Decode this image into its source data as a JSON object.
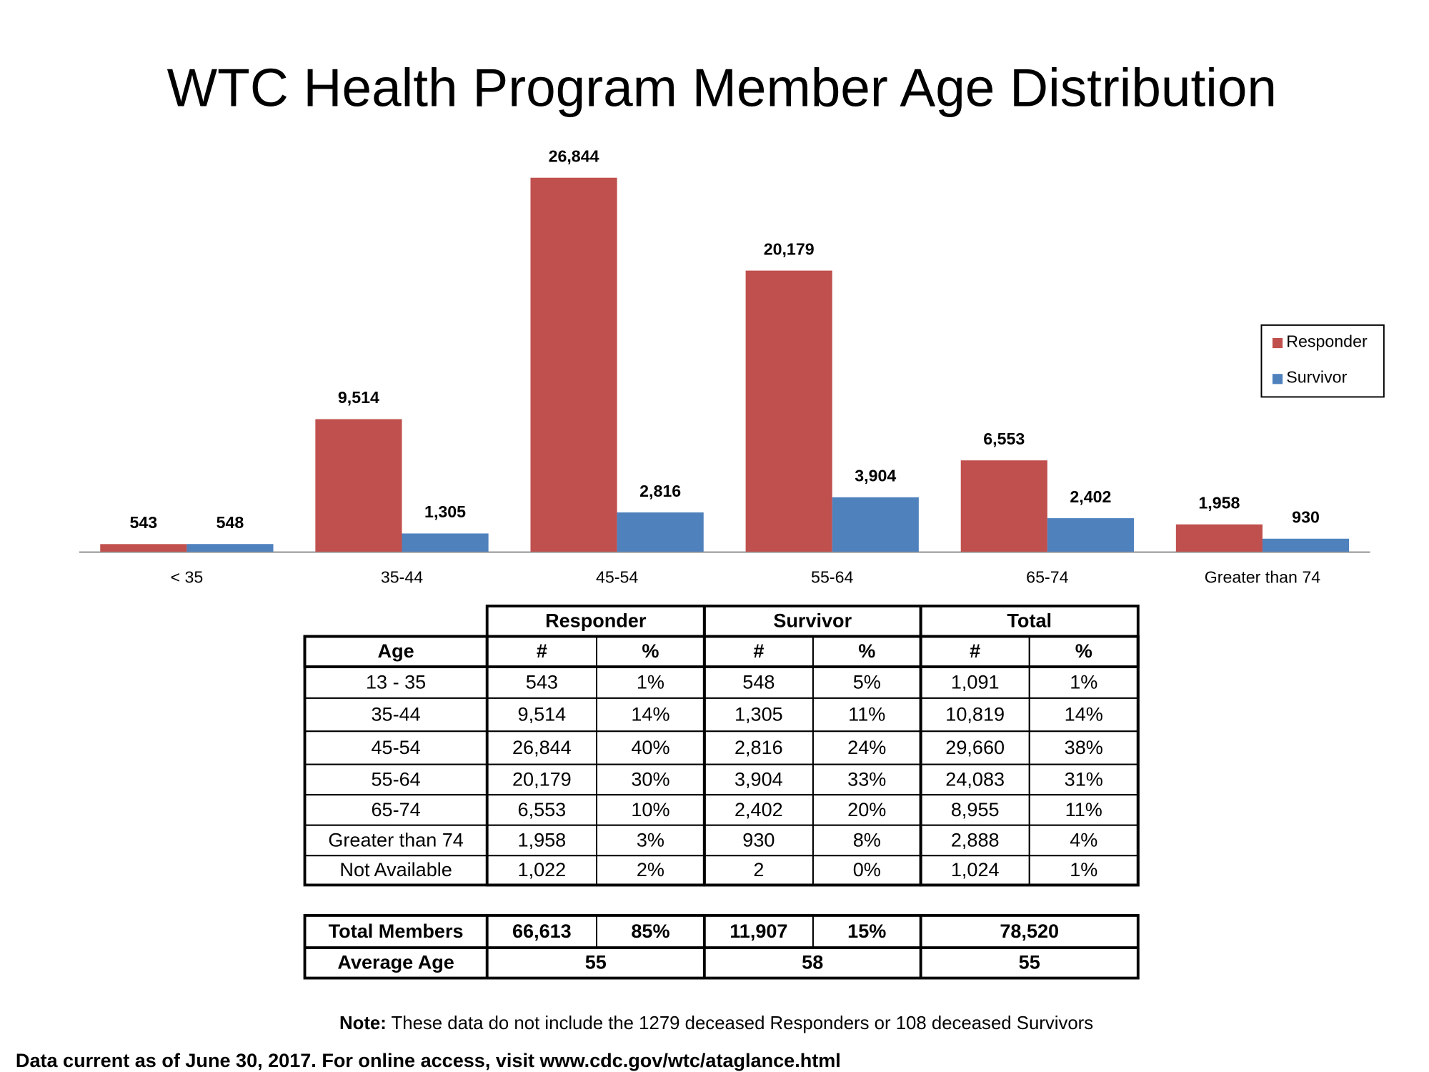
{
  "chart_data": {
    "type": "bar",
    "title": "WTC Health Program Member Age Distribution",
    "categories": [
      "< 35",
      "35-44",
      "45-54",
      "55-64",
      "65-74",
      "Greater than 74"
    ],
    "series": [
      {
        "name": "Responder",
        "color": "#c0504d",
        "values": [
          543,
          9514,
          26844,
          20179,
          6553,
          1958
        ],
        "value_labels": [
          "543",
          "9,514",
          "26,844",
          "20,179",
          "6,553",
          "1,958"
        ]
      },
      {
        "name": "Survivor",
        "color": "#4f81bd",
        "values": [
          548,
          1305,
          2816,
          3904,
          2402,
          930
        ],
        "value_labels": [
          "548",
          "1,305",
          "2,816",
          "3,904",
          "2,402",
          "930"
        ]
      }
    ],
    "legend": "right"
  },
  "table": {
    "group_header": [
      "Responder",
      "Survivor",
      "Total"
    ],
    "sub_header": [
      "Age",
      "#",
      "%",
      "#",
      "%",
      "#",
      "%"
    ],
    "rows": [
      [
        "13 - 35",
        "543",
        "1%",
        "548",
        "5%",
        "1,091",
        "1%"
      ],
      [
        "35-44",
        "9,514",
        "14%",
        "1,305",
        "11%",
        "10,819",
        "14%"
      ],
      [
        "45-54",
        "26,844",
        "40%",
        "2,816",
        "24%",
        "29,660",
        "38%"
      ],
      [
        "55-64",
        "20,179",
        "30%",
        "3,904",
        "33%",
        "24,083",
        "31%"
      ],
      [
        "65-74",
        "6,553",
        "10%",
        "2,402",
        "20%",
        "8,955",
        "11%"
      ],
      [
        "Greater than 74",
        "1,958",
        "3%",
        "930",
        "8%",
        "2,888",
        "4%"
      ],
      [
        "Not Available",
        "1,022",
        "2%",
        "2",
        "0%",
        "1,024",
        "1%"
      ]
    ]
  },
  "summary": {
    "total_row": [
      "Total Members",
      "66,613",
      "85%",
      "11,907",
      "15%",
      "78,520"
    ],
    "average_row": [
      "Average Age",
      "55",
      "58",
      "55"
    ]
  },
  "note": {
    "label": "Note:",
    "text": " These data do not include the 1279 deceased Responders or 108 deceased Survivors"
  },
  "footer": "Data current as of June 30, 2017. For online access, visit www.cdc.gov/wtc/ataglance.html"
}
